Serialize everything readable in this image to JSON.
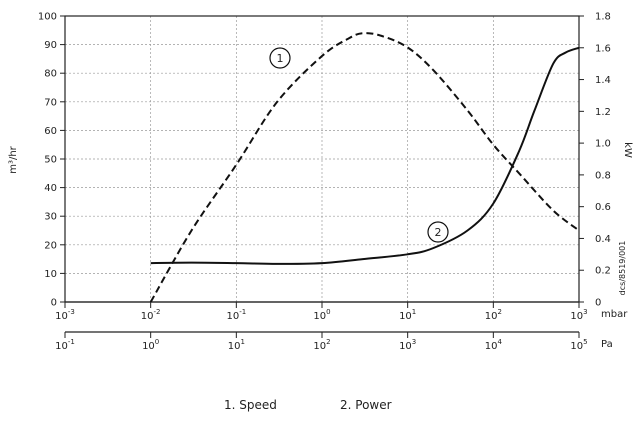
{
  "chart_data": {
    "type": "line",
    "y_left": {
      "label": "m³/hr",
      "range": [
        0,
        100
      ],
      "ticks": [
        0,
        10,
        20,
        30,
        40,
        50,
        60,
        70,
        80,
        90,
        100
      ]
    },
    "y_right": {
      "label": "kW",
      "range": [
        0,
        1.8
      ],
      "ticks": [
        "0",
        "0.2",
        "0.4",
        "0.6",
        "0.8",
        "1.0",
        "1.2",
        "1.4",
        "1.6",
        "1.8"
      ]
    },
    "x_axes": [
      {
        "unit": "mbar",
        "scale": "log",
        "range": [
          0.001,
          1000
        ],
        "ticks": [
          {
            "b": "10",
            "e": "-3"
          },
          {
            "b": "10",
            "e": "-2"
          },
          {
            "b": "10",
            "e": "-1"
          },
          {
            "b": "10",
            "e": "0"
          },
          {
            "b": "10",
            "e": "1"
          },
          {
            "b": "10",
            "e": "2"
          },
          {
            "b": "10",
            "e": "3"
          }
        ]
      },
      {
        "unit": "Pa",
        "scale": "log",
        "range": [
          0.1,
          100000
        ],
        "ticks": [
          {
            "b": "10",
            "e": "-1"
          },
          {
            "b": "10",
            "e": "0"
          },
          {
            "b": "10",
            "e": "1"
          },
          {
            "b": "10",
            "e": "2"
          },
          {
            "b": "10",
            "e": "3"
          },
          {
            "b": "10",
            "e": "4"
          },
          {
            "b": "10",
            "e": "5"
          }
        ]
      }
    ],
    "grid": true,
    "series": [
      {
        "name": "Speed",
        "marker": "1",
        "axis": "left",
        "style": "dashed",
        "x_mbar": [
          0.01,
          0.03,
          0.1,
          0.3,
          1,
          2,
          3,
          5,
          10,
          20,
          50,
          100,
          200,
          500,
          1000
        ],
        "y": [
          0,
          25,
          48,
          70,
          86,
          92,
          94,
          93,
          89,
          81,
          67,
          55,
          45,
          32,
          25
        ]
      },
      {
        "name": "Power",
        "marker": "2",
        "axis": "right",
        "style": "solid",
        "x_mbar": [
          0.01,
          0.03,
          0.1,
          0.3,
          1,
          3,
          10,
          20,
          50,
          100,
          200,
          300,
          500,
          700,
          1000
        ],
        "y": [
          0.245,
          0.248,
          0.245,
          0.24,
          0.245,
          0.27,
          0.3,
          0.34,
          0.45,
          0.62,
          0.95,
          1.2,
          1.5,
          1.57,
          1.6
        ]
      }
    ],
    "legend": {
      "placement": "bottom",
      "items": [
        "1.  Speed",
        "2.  Power"
      ]
    },
    "code": "dcs/8519/001"
  }
}
